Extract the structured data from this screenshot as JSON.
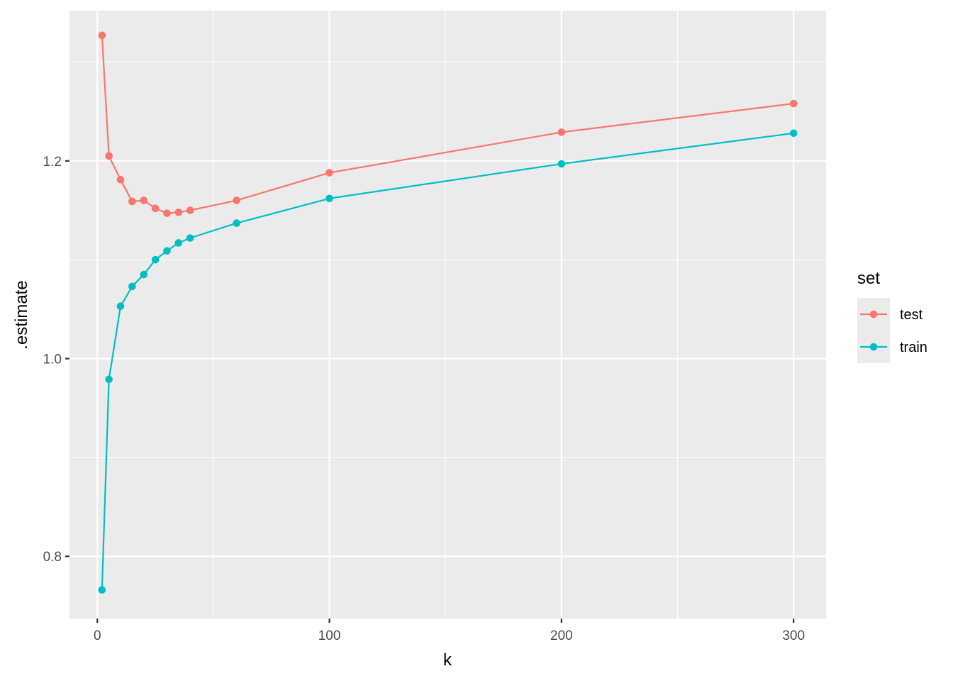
{
  "chart_data": {
    "type": "line",
    "xlabel": "k",
    "ylabel": ".estimate",
    "xlim": [
      -12,
      314
    ],
    "ylim": [
      0.737,
      1.352
    ],
    "x_ticks": [
      0,
      100,
      200,
      300
    ],
    "x_tick_labels": [
      "0",
      "100",
      "200",
      "300"
    ],
    "x_minor_ticks": [
      50,
      150,
      250
    ],
    "y_ticks": [
      0.8,
      1.0,
      1.2
    ],
    "y_tick_labels": [
      "0.8",
      "1.0",
      "1.2"
    ],
    "y_minor_ticks": [
      0.9,
      1.1,
      1.3
    ],
    "grid": true,
    "background": "#ebebeb",
    "legend": {
      "title": "set",
      "position": "right",
      "entries": [
        "test",
        "train"
      ]
    },
    "series": [
      {
        "name": "test",
        "color": "#f8766d",
        "x": [
          2,
          5,
          10,
          15,
          20,
          25,
          30,
          35,
          40,
          60,
          100,
          200,
          300
        ],
        "y": [
          1.327,
          1.205,
          1.181,
          1.159,
          1.16,
          1.152,
          1.147,
          1.148,
          1.15,
          1.16,
          1.188,
          1.229,
          1.258
        ]
      },
      {
        "name": "train",
        "color": "#00bfc4",
        "x": [
          2,
          5,
          10,
          15,
          20,
          25,
          30,
          35,
          40,
          60,
          100,
          200,
          300
        ],
        "y": [
          0.766,
          0.979,
          1.053,
          1.073,
          1.085,
          1.1,
          1.109,
          1.117,
          1.122,
          1.137,
          1.162,
          1.197,
          1.228
        ]
      }
    ]
  }
}
